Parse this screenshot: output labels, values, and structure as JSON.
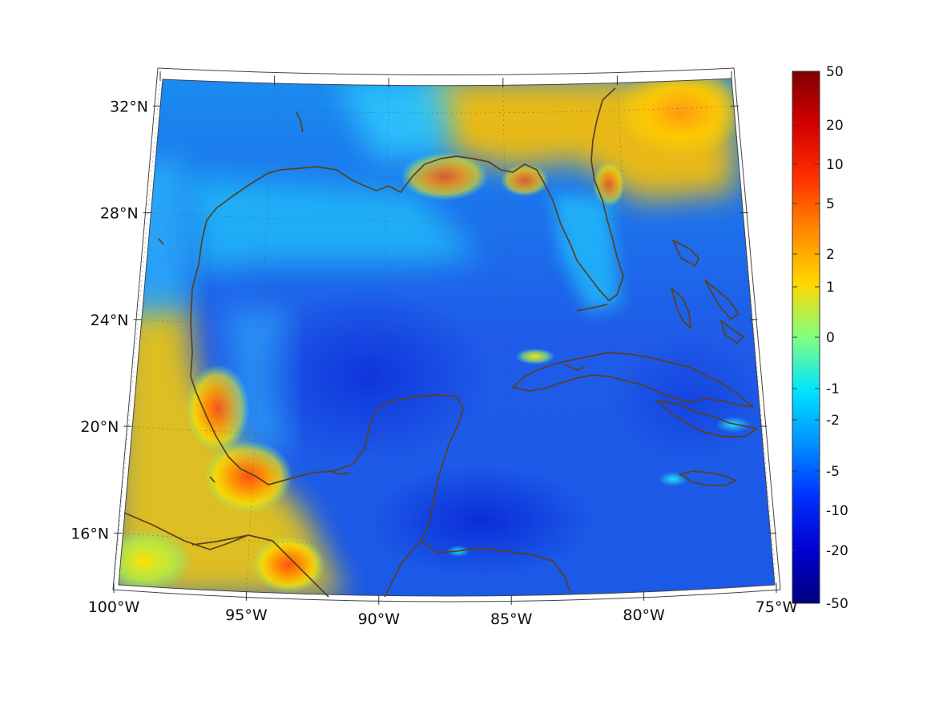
{
  "map": {
    "lat_ticks": [
      {
        "value": 32,
        "label": "32°N"
      },
      {
        "value": 28,
        "label": "28°N"
      },
      {
        "value": 24,
        "label": "24°N"
      },
      {
        "value": 20,
        "label": "20°N"
      },
      {
        "value": 16,
        "label": "16°N"
      }
    ],
    "lon_ticks": [
      {
        "value": -100,
        "label": "100°W"
      },
      {
        "value": -95,
        "label": "95°W"
      },
      {
        "value": -90,
        "label": "90°W"
      },
      {
        "value": -85,
        "label": "85°W"
      },
      {
        "value": -80,
        "label": "80°W"
      },
      {
        "value": -75,
        "label": "75°W"
      }
    ],
    "extent": {
      "lon_min": -100,
      "lon_max": -75,
      "lat_min": 14,
      "lat_max": 33
    },
    "coastline_color": "#5a4020",
    "grid": true
  },
  "colorbar": {
    "colormap": "jet",
    "ticks": [
      "50",
      "20",
      "10",
      "5",
      "2",
      "1",
      "0",
      "-1",
      "-2",
      "-5",
      "-10",
      "-20",
      "-50"
    ],
    "colors": [
      "#800000",
      "#ff0000",
      "#ff6a00",
      "#ffaa00",
      "#ffff00",
      "#7fff7f",
      "#00ffff",
      "#0090ff",
      "#0010ff",
      "#000080"
    ]
  }
}
